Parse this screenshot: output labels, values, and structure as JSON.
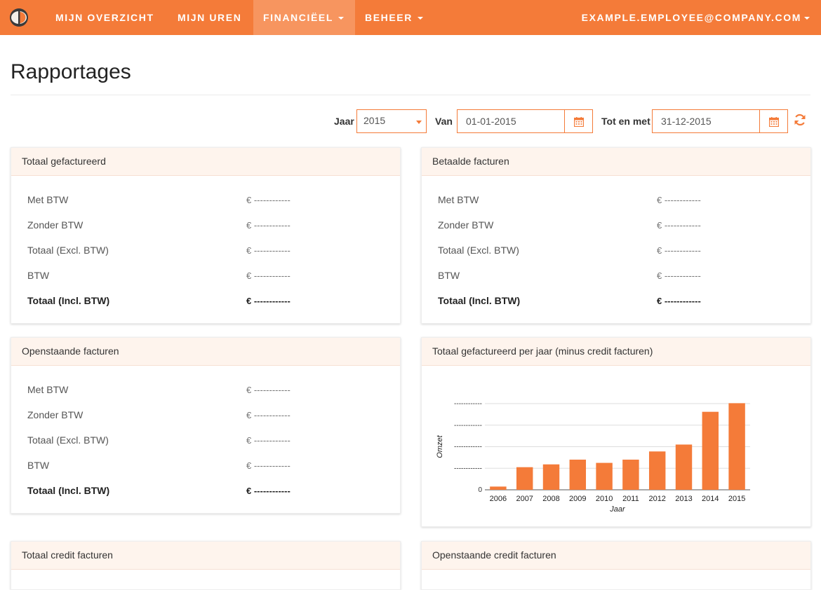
{
  "nav": {
    "items": [
      "MIJN OVERZICHT",
      "MIJN UREN",
      "FINANCIËEL",
      "BEHEER"
    ],
    "active": "FINANCIËEL",
    "user": "EXAMPLE.EMPLOYEE@COMPANY.COM"
  },
  "page": {
    "title": "Rapportages"
  },
  "filters": {
    "year_label": "Jaar",
    "year_value": "2015",
    "from_label": "Van",
    "from_value": "01-01-2015",
    "to_label": "Tot en met",
    "to_value": "31-12-2015"
  },
  "summary_rows": {
    "labels": [
      "Met BTW",
      "Zonder BTW",
      "Totaal (Excl. BTW)",
      "BTW",
      "Totaal (Incl. BTW)"
    ],
    "value": "€ ------------"
  },
  "panels": {
    "totaal_gefactureerd": "Totaal gefactureerd",
    "betaalde_facturen": "Betaalde facturen",
    "openstaande_facturen": "Openstaande facturen",
    "chart_title": "Totaal gefactureerd per jaar (minus credit facturen)",
    "totaal_credit": "Totaal credit facturen",
    "openstaande_credit": "Openstaande credit facturen"
  },
  "chart_data": {
    "type": "bar",
    "title": "Totaal gefactureerd per jaar (minus credit facturen)",
    "xlabel": "Jaar",
    "ylabel": "Omzet",
    "categories": [
      "2006",
      "2007",
      "2008",
      "2009",
      "2010",
      "2011",
      "2012",
      "2013",
      "2014",
      "2015"
    ],
    "values": [
      0.15,
      1.05,
      1.18,
      1.4,
      1.25,
      1.4,
      1.78,
      2.1,
      3.62,
      4.02
    ],
    "ylim": [
      0,
      4
    ],
    "yticks": [
      "0",
      "------------",
      "------------",
      "------------",
      "------------"
    ],
    "grid": true,
    "color": "#f47b39"
  },
  "colors": {
    "accent": "#f47b39",
    "panel_head": "#fef4ed"
  }
}
